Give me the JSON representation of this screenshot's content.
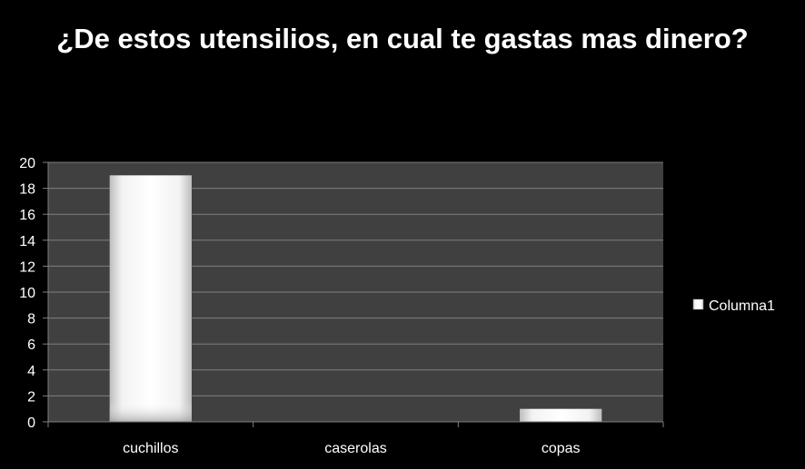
{
  "chart_data": {
    "type": "bar",
    "title": "¿De estos utensilios, en cual te gastas mas dinero?",
    "categories": [
      "cuchillos",
      "caserolas",
      "copas"
    ],
    "series": [
      {
        "name": "Columna1",
        "values": [
          19,
          0,
          1
        ]
      }
    ],
    "ylim": [
      0,
      20
    ],
    "yticks": [
      0,
      2,
      4,
      6,
      8,
      10,
      12,
      14,
      16,
      18,
      20
    ],
    "grid": true,
    "legend": "right",
    "colors": {
      "background": "#000000",
      "plot_area": "#404040",
      "gridline": "#7f7f7f",
      "bar": "#ffffff"
    }
  }
}
